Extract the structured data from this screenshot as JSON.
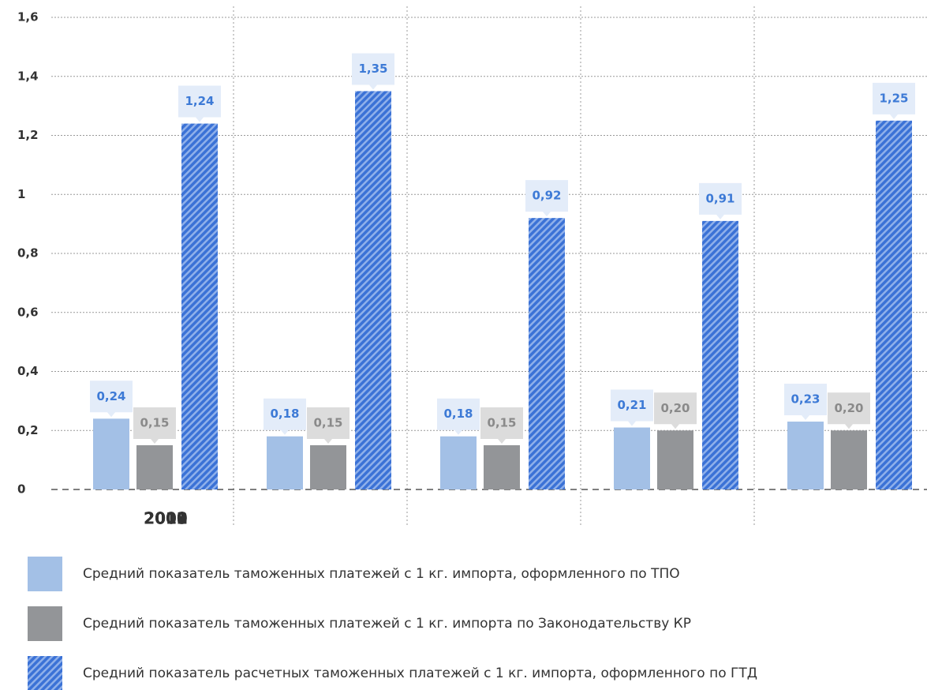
{
  "chart_data": {
    "type": "bar",
    "categories": [
      "2008",
      "2009",
      "2010",
      "2011",
      "2012"
    ],
    "series": [
      {
        "name": "Средний показатель таможенных платежей с 1 кг. импорта, оформленного по ТПО",
        "color": "#a3c0e6",
        "values": [
          0.24,
          0.18,
          0.18,
          0.21,
          0.23
        ],
        "value_labels": [
          "0,24",
          "0,18",
          "0,18",
          "0,21",
          "0,23"
        ]
      },
      {
        "name": "Средний показатель таможенных платежей с 1 кг. импорта по Законодательству КР",
        "color": "#939598",
        "values": [
          0.15,
          0.15,
          0.15,
          0.2,
          0.2
        ],
        "value_labels": [
          "0,15",
          "0,15",
          "0,15",
          "0,20",
          "0,20"
        ]
      },
      {
        "name": "Средний показатель расчетных таможенных платежей с 1 кг. импорта, оформленного по ГТД",
        "color": "#3b72d6",
        "hatch": true,
        "values": [
          1.24,
          1.35,
          0.92,
          0.91,
          1.25
        ],
        "value_labels": [
          "1,24",
          "1,35",
          "0,92",
          "0,91",
          "1,25"
        ]
      }
    ],
    "ylim": [
      0,
      1.6
    ],
    "yticks": [
      0,
      {
        "value": 0.2,
        "label": "0,2"
      },
      {
        "value": 0.4,
        "label": "0,4"
      },
      {
        "value": 0.6,
        "label": "0,6"
      },
      {
        "value": 0.8,
        "label": "0,8"
      },
      1,
      {
        "value": 1.2,
        "label": "1,2"
      },
      {
        "value": 1.4,
        "label": "1,4"
      },
      {
        "value": 1.6,
        "label": "1,6"
      }
    ],
    "grid": true
  }
}
